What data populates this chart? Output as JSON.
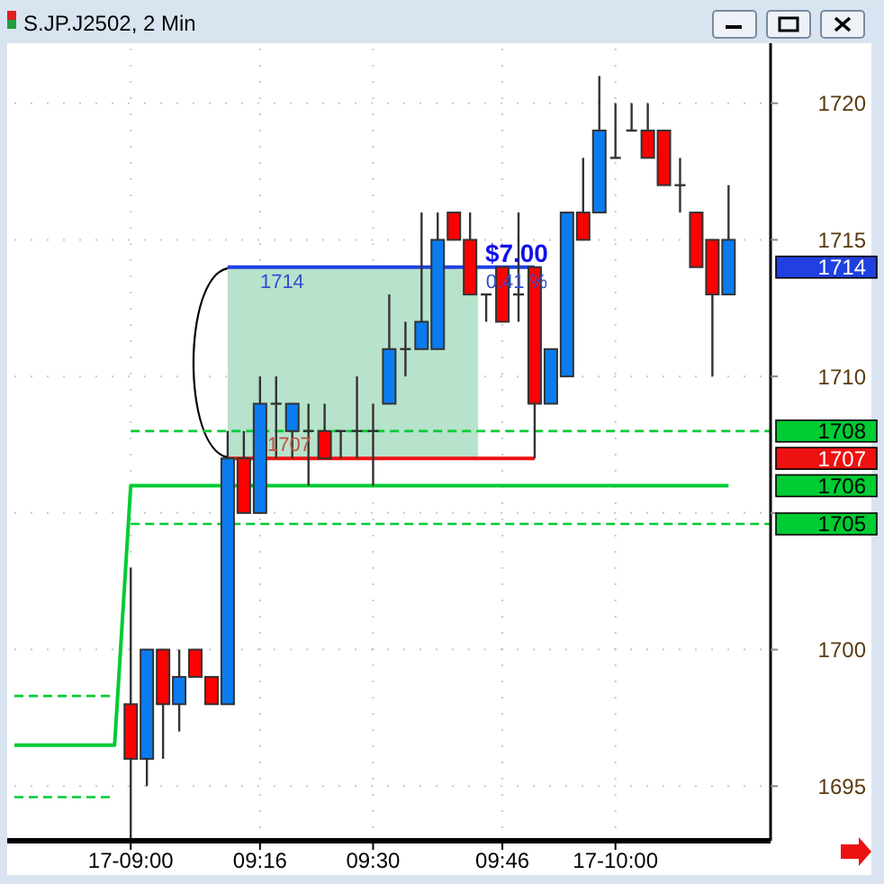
{
  "chart_data": {
    "type": "candlestick",
    "title": "S.JP.J2502, 2 Min",
    "x": [
      9,
      9.0333,
      9.0667,
      9.1,
      9.1333,
      9.1667,
      9.2,
      9.2333,
      9.2667,
      9.3,
      9.3333,
      9.3667,
      9.4,
      9.4333,
      9.4667,
      9.5,
      9.5333,
      9.5667,
      9.6,
      9.6333,
      9.6667,
      9.7,
      9.7333,
      9.7667,
      9.8,
      9.8333,
      9.8667,
      9.9,
      9.9333,
      9.9667,
      10,
      10.0333,
      10.0667,
      10.1,
      10.1333,
      10.1667,
      10.2,
      10.2333
    ],
    "ohlc": [
      [
        1698,
        1703,
        1693,
        1696
      ],
      [
        1696,
        1700,
        1695,
        1700
      ],
      [
        1700,
        1700,
        1696,
        1698
      ],
      [
        1698,
        1700,
        1697,
        1699
      ],
      [
        1700,
        1700,
        1699,
        1699
      ],
      [
        1699,
        1699,
        1698,
        1698
      ],
      [
        1698,
        1708,
        1698,
        1707
      ],
      [
        1707,
        1708,
        1705,
        1705
      ],
      [
        1705,
        1710,
        1705,
        1709
      ],
      [
        1709,
        1710,
        1707,
        1709
      ],
      [
        1708,
        1709,
        1707,
        1709
      ],
      [
        1708,
        1709,
        1706,
        1708
      ],
      [
        1708,
        1709,
        1707,
        1707
      ],
      [
        1708,
        1708,
        1707,
        1708
      ],
      [
        1708,
        1710,
        1707,
        1708
      ],
      [
        1708,
        1709,
        1706,
        1708
      ],
      [
        1709,
        1713,
        1709,
        1711
      ],
      [
        1711,
        1712,
        1710,
        1711
      ],
      [
        1711,
        1716,
        1711,
        1712
      ],
      [
        1711,
        1716,
        1711,
        1715
      ],
      [
        1716,
        1716,
        1715,
        1715
      ],
      [
        1715,
        1716,
        1713,
        1713
      ],
      [
        1713,
        1713,
        1712,
        1713
      ],
      [
        1714,
        1714,
        1712,
        1712
      ],
      [
        1713,
        1716,
        1712,
        1713
      ],
      [
        1714,
        1714,
        1707,
        1709
      ],
      [
        1709,
        1711,
        1709,
        1711
      ],
      [
        1710,
        1716,
        1710,
        1716
      ],
      [
        1716,
        1718,
        1715,
        1715
      ],
      [
        1716,
        1721,
        1716,
        1719
      ],
      [
        1718,
        1720,
        1718,
        1718
      ],
      [
        1719,
        1720,
        1719,
        1719
      ],
      [
        1719,
        1720,
        1718,
        1718
      ],
      [
        1719,
        1719,
        1717,
        1717
      ],
      [
        1717,
        1718,
        1716,
        1717
      ],
      [
        1716,
        1716,
        1714,
        1714
      ],
      [
        1715,
        1715,
        1710,
        1713
      ],
      [
        1713,
        1717,
        1713,
        1715
      ]
    ],
    "colors": [
      "#ff0000",
      "#0a7cf0",
      "#ff0000",
      "#0a7cf0",
      "#ff0000",
      "#ff0000",
      "#0a7cf0",
      "#ff0000",
      "#0a7cf0",
      "#333333",
      "#0a7cf0",
      "#333333",
      "#ff0000",
      "#333333",
      "#333333",
      "#333333",
      "#0a7cf0",
      "#333333",
      "#0a7cf0",
      "#0a7cf0",
      "#ff0000",
      "#ff0000",
      "#333333",
      "#ff0000",
      "#333333",
      "#ff0000",
      "#0a7cf0",
      "#0a7cf0",
      "#ff0000",
      "#0a7cf0",
      "#333333",
      "#333333",
      "#ff0000",
      "#ff0000",
      "#333333",
      "#ff0000",
      "#ff0000",
      "#0a7cf0"
    ],
    "series": [
      {
        "type": "area",
        "x": [
          9.2,
          9.7167
        ],
        "values": [
          1714,
          1714
        ],
        "color": "#b3e0c8"
      },
      {
        "type": "line",
        "x": [
          8.76,
          8.9667,
          9.0,
          10.2333
        ],
        "values": [
          1696.5,
          1696.5,
          1706,
          1706
        ],
        "color": "#00cc33",
        "line_style": "solid"
      },
      {
        "type": "line",
        "x": [
          8.76,
          8.9667,
          8.98,
          9.0,
          10.32
        ],
        "values": [
          1698.3,
          1698.3,
          null,
          1708,
          1708
        ],
        "color": "#00cc33",
        "line_style": "dashed"
      },
      {
        "type": "line",
        "x": [
          8.76,
          8.9667,
          8.98,
          9.0,
          10.32
        ],
        "values": [
          1694.6,
          1694.6,
          null,
          1704.6,
          1704.6
        ],
        "color": "#00cc33",
        "line_style": "dashed"
      },
      {
        "type": "line",
        "x": [
          9.2,
          9.8333
        ],
        "values": [
          1714,
          1714
        ],
        "color": "#2040e0",
        "line_style": "solid"
      },
      {
        "type": "line",
        "x": [
          9.2,
          9.8333
        ],
        "values": [
          1707,
          1707
        ],
        "color": "#ee1111",
        "line_style": "solid"
      }
    ],
    "annotations": [
      "1714",
      "1707",
      "$7.00",
      "0.41 %",
      "1714",
      "1708",
      "1707",
      "1706",
      "1705"
    ],
    "xlim": [
      8.76,
      10.32
    ],
    "ylim": [
      1693,
      1722
    ],
    "xticks": [
      {
        "value": 9,
        "label": "17-09:00"
      },
      {
        "value": 9.2667,
        "label": "09:16"
      },
      {
        "value": 9.5,
        "label": "09:30"
      },
      {
        "value": 9.7667,
        "label": "09:46"
      },
      {
        "value": 10,
        "label": "17-10:00"
      }
    ],
    "yticks": [
      1695,
      1700,
      {
        "value": 1705,
        "label": null
      },
      1710,
      1715,
      1720
    ],
    "grid": true,
    "marker": "none"
  }
}
